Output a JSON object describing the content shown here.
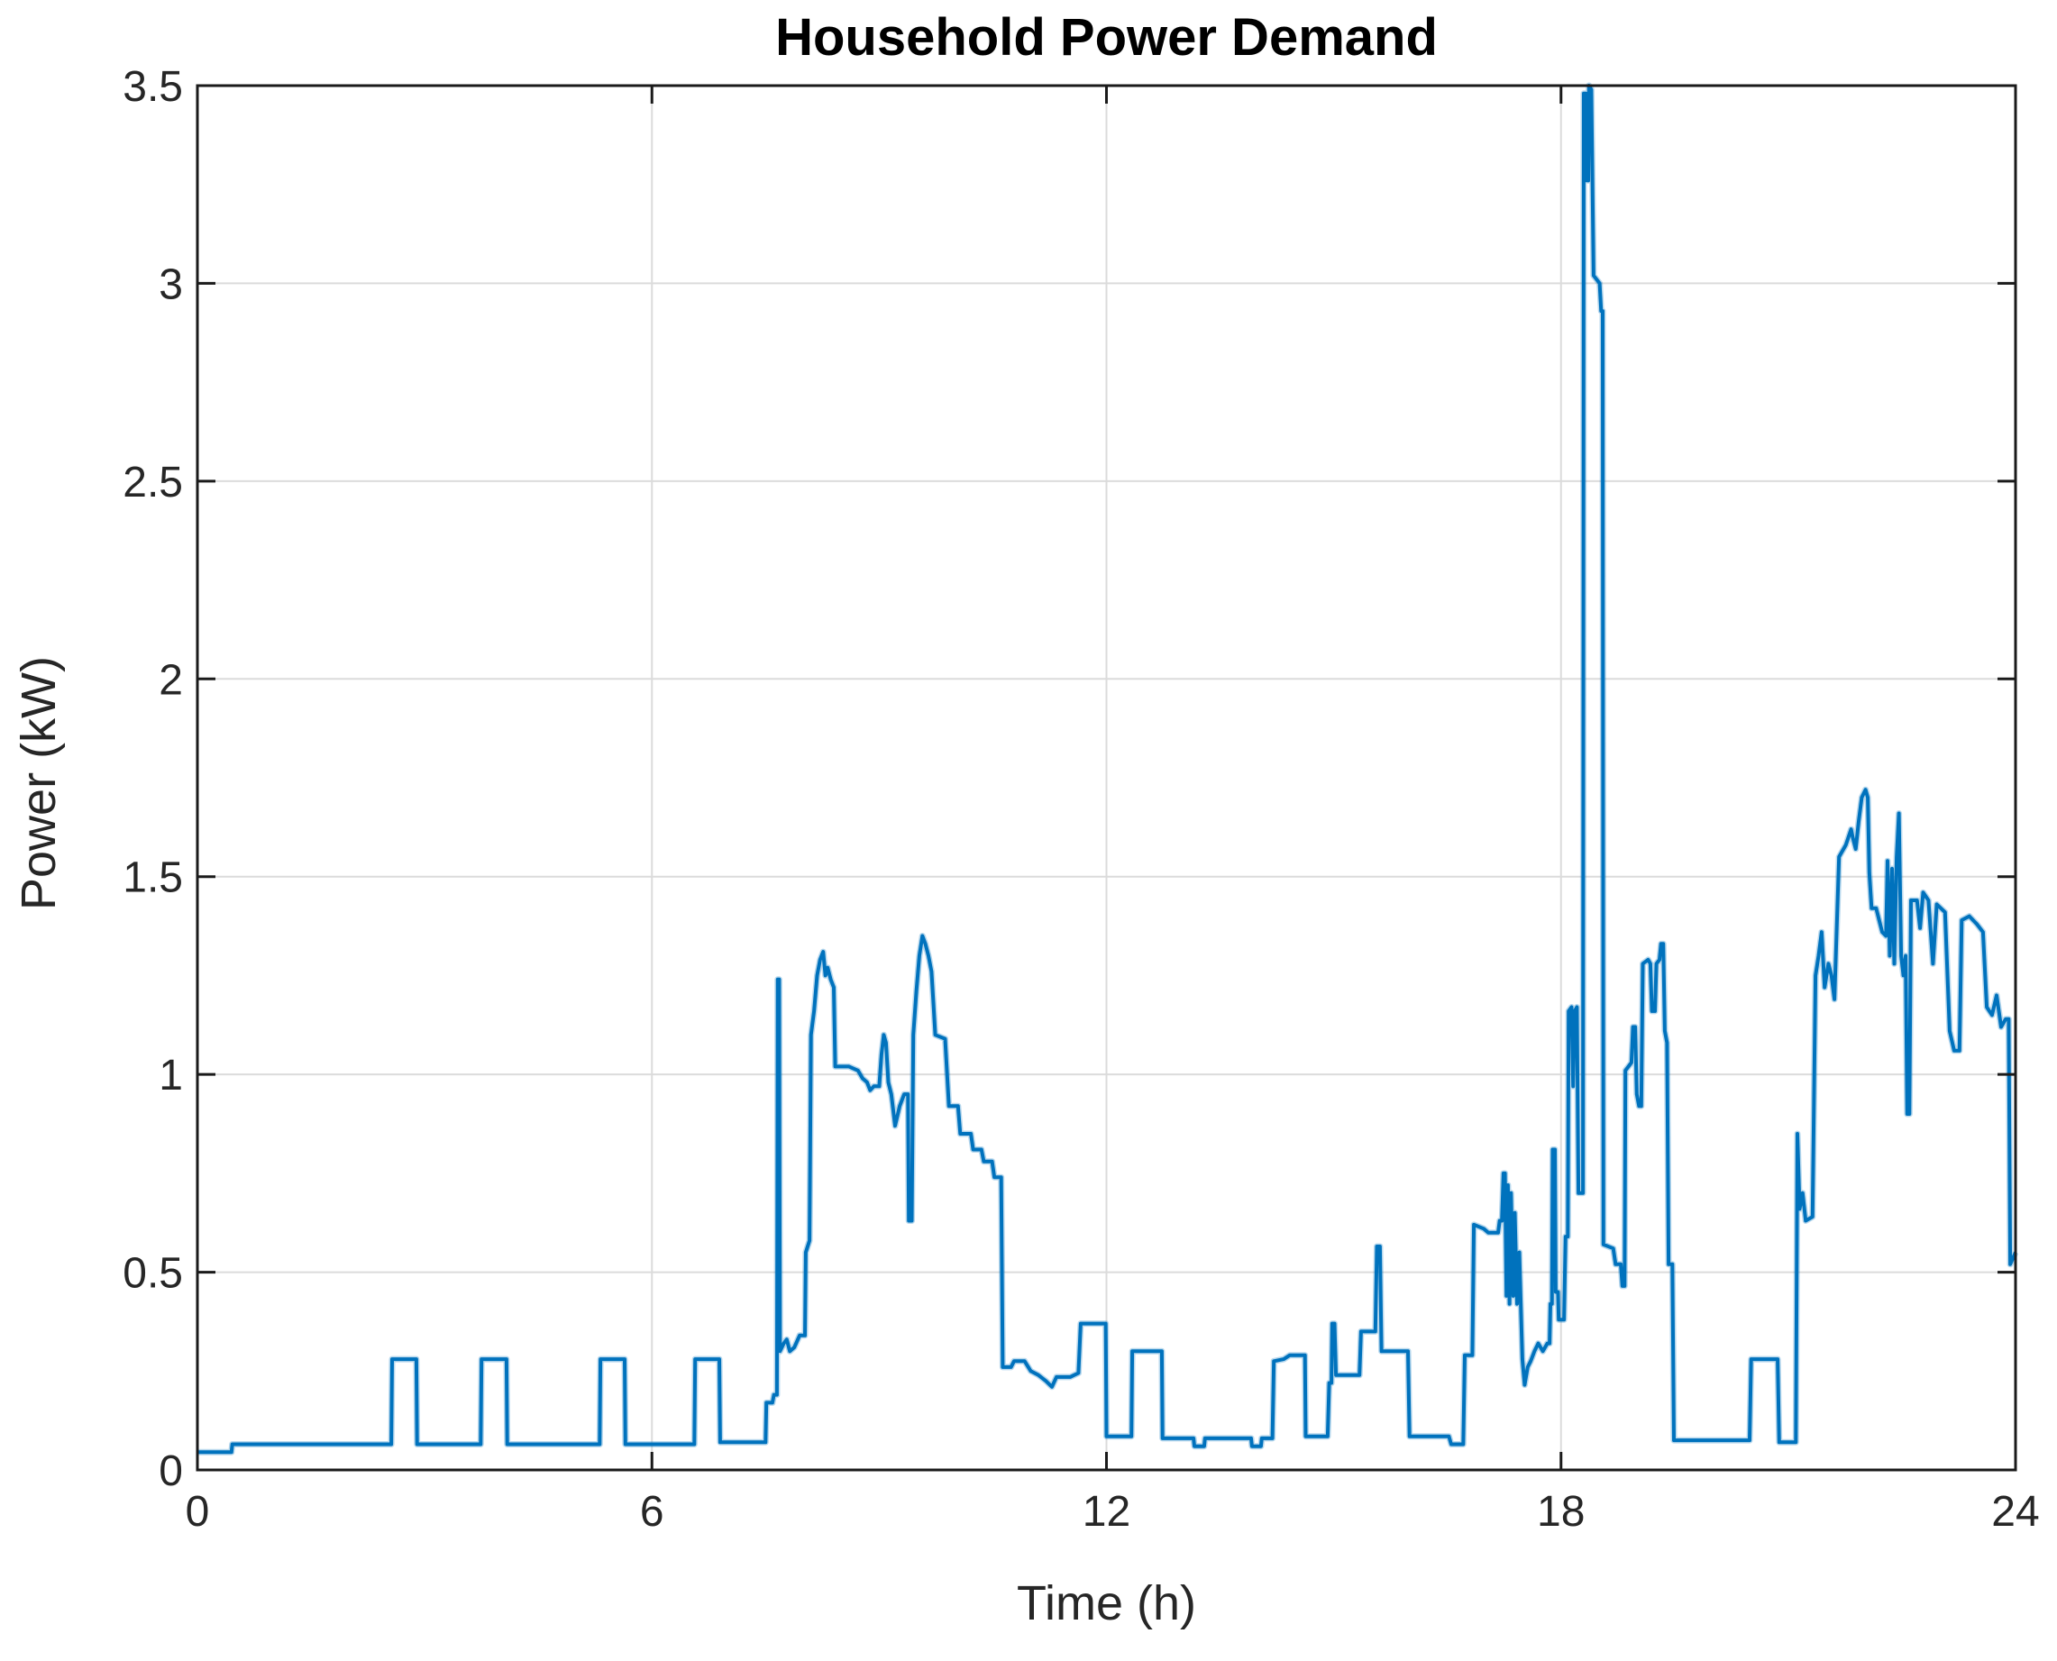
{
  "chart_data": {
    "type": "line",
    "title": "Household Power Demand",
    "xlabel": "Time (h)",
    "ylabel": "Power (kW)",
    "xlim": [
      0,
      24
    ],
    "ylim": [
      0,
      3.5
    ],
    "xticks": {
      "values": [
        0,
        6,
        12,
        18,
        24
      ],
      "labels": [
        "0",
        "6",
        "12",
        "18",
        "24"
      ]
    },
    "yticks": {
      "values": [
        0,
        0.5,
        1,
        1.5,
        2,
        2.5,
        3,
        3.5
      ],
      "labels": [
        "0",
        "0.5",
        "1",
        "1.5",
        "2",
        "2.5",
        "3",
        "3.5"
      ]
    },
    "grid": true,
    "legend_position": "none",
    "colors": {
      "line": "#0072BD",
      "line_halo": "rgba(0,114,189,0.28)",
      "grid": "#DBDBDB",
      "axis_box": "#1A1A1A",
      "tick_text": "#262626",
      "title_text": "#000000",
      "background": "#FFFFFF"
    },
    "series": [
      {
        "name": "Household power demand",
        "points": [
          [
            0,
            0.045
          ],
          [
            0.45,
            0.045
          ],
          [
            0.46,
            0.065
          ],
          [
            2.56,
            0.065
          ],
          [
            2.57,
            0.28
          ],
          [
            2.89,
            0.28
          ],
          [
            2.9,
            0.065
          ],
          [
            3.74,
            0.065
          ],
          [
            3.75,
            0.28
          ],
          [
            4.08,
            0.28
          ],
          [
            4.09,
            0.065
          ],
          [
            5.31,
            0.065
          ],
          [
            5.32,
            0.28
          ],
          [
            5.64,
            0.28
          ],
          [
            5.65,
            0.065
          ],
          [
            6.56,
            0.065
          ],
          [
            6.57,
            0.28
          ],
          [
            6.89,
            0.28
          ],
          [
            6.9,
            0.07
          ],
          [
            7.5,
            0.07
          ],
          [
            7.51,
            0.17
          ],
          [
            7.59,
            0.17
          ],
          [
            7.61,
            0.19
          ],
          [
            7.65,
            0.19
          ],
          [
            7.66,
            1.24
          ],
          [
            7.68,
            1.24
          ],
          [
            7.69,
            0.3
          ],
          [
            7.74,
            0.32
          ],
          [
            7.78,
            0.33
          ],
          [
            7.82,
            0.3
          ],
          [
            7.88,
            0.31
          ],
          [
            7.95,
            0.34
          ],
          [
            8.02,
            0.34
          ],
          [
            8.03,
            0.55
          ],
          [
            8.08,
            0.58
          ],
          [
            8.1,
            1.1
          ],
          [
            8.14,
            1.16
          ],
          [
            8.18,
            1.25
          ],
          [
            8.22,
            1.29
          ],
          [
            8.26,
            1.31
          ],
          [
            8.29,
            1.25
          ],
          [
            8.32,
            1.27
          ],
          [
            8.36,
            1.24
          ],
          [
            8.4,
            1.22
          ],
          [
            8.42,
            1.02
          ],
          [
            8.6,
            1.02
          ],
          [
            8.72,
            1.01
          ],
          [
            8.78,
            0.99
          ],
          [
            8.84,
            0.98
          ],
          [
            8.88,
            0.96
          ],
          [
            8.93,
            0.97
          ],
          [
            9.0,
            0.97
          ],
          [
            9.03,
            1.05
          ],
          [
            9.06,
            1.1
          ],
          [
            9.09,
            1.08
          ],
          [
            9.12,
            0.98
          ],
          [
            9.16,
            0.95
          ],
          [
            9.21,
            0.87
          ],
          [
            9.27,
            0.92
          ],
          [
            9.33,
            0.95
          ],
          [
            9.38,
            0.95
          ],
          [
            9.39,
            0.63
          ],
          [
            9.43,
            0.63
          ],
          [
            9.45,
            1.1
          ],
          [
            9.49,
            1.21
          ],
          [
            9.53,
            1.3
          ],
          [
            9.57,
            1.35
          ],
          [
            9.61,
            1.33
          ],
          [
            9.65,
            1.3
          ],
          [
            9.69,
            1.26
          ],
          [
            9.74,
            1.1
          ],
          [
            9.87,
            1.09
          ],
          [
            9.92,
            0.92
          ],
          [
            10.04,
            0.92
          ],
          [
            10.07,
            0.85
          ],
          [
            10.21,
            0.85
          ],
          [
            10.24,
            0.81
          ],
          [
            10.35,
            0.81
          ],
          [
            10.38,
            0.78
          ],
          [
            10.49,
            0.78
          ],
          [
            10.52,
            0.74
          ],
          [
            10.61,
            0.74
          ],
          [
            10.63,
            0.26
          ],
          [
            10.74,
            0.26
          ],
          [
            10.78,
            0.275
          ],
          [
            10.92,
            0.275
          ],
          [
            11.0,
            0.25
          ],
          [
            11.1,
            0.24
          ],
          [
            11.2,
            0.225
          ],
          [
            11.28,
            0.21
          ],
          [
            11.34,
            0.235
          ],
          [
            11.52,
            0.235
          ],
          [
            11.63,
            0.245
          ],
          [
            11.66,
            0.37
          ],
          [
            11.99,
            0.37
          ],
          [
            12.0,
            0.085
          ],
          [
            12.33,
            0.085
          ],
          [
            12.34,
            0.3
          ],
          [
            12.73,
            0.3
          ],
          [
            12.74,
            0.08
          ],
          [
            13.15,
            0.08
          ],
          [
            13.16,
            0.06
          ],
          [
            13.29,
            0.06
          ],
          [
            13.3,
            0.08
          ],
          [
            13.91,
            0.08
          ],
          [
            13.92,
            0.06
          ],
          [
            14.04,
            0.06
          ],
          [
            14.05,
            0.08
          ],
          [
            14.19,
            0.08
          ],
          [
            14.21,
            0.275
          ],
          [
            14.34,
            0.28
          ],
          [
            14.42,
            0.29
          ],
          [
            14.62,
            0.29
          ],
          [
            14.63,
            0.085
          ],
          [
            14.92,
            0.085
          ],
          [
            14.94,
            0.22
          ],
          [
            14.97,
            0.22
          ],
          [
            14.98,
            0.37
          ],
          [
            15.01,
            0.37
          ],
          [
            15.03,
            0.24
          ],
          [
            15.34,
            0.24
          ],
          [
            15.36,
            0.35
          ],
          [
            15.55,
            0.35
          ],
          [
            15.57,
            0.565
          ],
          [
            15.61,
            0.565
          ],
          [
            15.63,
            0.3
          ],
          [
            15.98,
            0.3
          ],
          [
            16.0,
            0.085
          ],
          [
            16.52,
            0.085
          ],
          [
            16.55,
            0.065
          ],
          [
            16.71,
            0.065
          ],
          [
            16.73,
            0.29
          ],
          [
            16.83,
            0.29
          ],
          [
            16.85,
            0.62
          ],
          [
            16.98,
            0.61
          ],
          [
            17.04,
            0.6
          ],
          [
            17.17,
            0.6
          ],
          [
            17.19,
            0.63
          ],
          [
            17.22,
            0.63
          ],
          [
            17.24,
            0.75
          ],
          [
            17.26,
            0.75
          ],
          [
            17.28,
            0.44
          ],
          [
            17.3,
            0.72
          ],
          [
            17.32,
            0.42
          ],
          [
            17.34,
            0.7
          ],
          [
            17.37,
            0.44
          ],
          [
            17.39,
            0.65
          ],
          [
            17.42,
            0.42
          ],
          [
            17.45,
            0.55
          ],
          [
            17.49,
            0.28
          ],
          [
            17.52,
            0.215
          ],
          [
            17.56,
            0.26
          ],
          [
            17.6,
            0.275
          ],
          [
            17.65,
            0.3
          ],
          [
            17.7,
            0.32
          ],
          [
            17.76,
            0.3
          ],
          [
            17.82,
            0.32
          ],
          [
            17.85,
            0.32
          ],
          [
            17.86,
            0.42
          ],
          [
            17.88,
            0.42
          ],
          [
            17.89,
            0.81
          ],
          [
            17.92,
            0.81
          ],
          [
            17.93,
            0.45
          ],
          [
            17.96,
            0.45
          ],
          [
            17.97,
            0.38
          ],
          [
            18.04,
            0.38
          ],
          [
            18.06,
            0.59
          ],
          [
            18.09,
            0.59
          ],
          [
            18.1,
            1.16
          ],
          [
            18.14,
            1.17
          ],
          [
            18.16,
            0.97
          ],
          [
            18.18,
            1.16
          ],
          [
            18.21,
            1.17
          ],
          [
            18.23,
            0.7
          ],
          [
            18.29,
            0.7
          ],
          [
            18.3,
            3.48
          ],
          [
            18.33,
            3.48
          ],
          [
            18.34,
            3.26
          ],
          [
            18.36,
            3.26
          ],
          [
            18.37,
            3.5
          ],
          [
            18.4,
            3.49
          ],
          [
            18.43,
            3.02
          ],
          [
            18.51,
            3.0
          ],
          [
            18.53,
            2.93
          ],
          [
            18.55,
            2.93
          ],
          [
            18.56,
            0.57
          ],
          [
            18.69,
            0.56
          ],
          [
            18.72,
            0.52
          ],
          [
            18.79,
            0.52
          ],
          [
            18.81,
            0.465
          ],
          [
            18.84,
            0.465
          ],
          [
            18.85,
            1.01
          ],
          [
            18.93,
            1.03
          ],
          [
            18.95,
            1.12
          ],
          [
            18.98,
            1.12
          ],
          [
            19.0,
            0.95
          ],
          [
            19.03,
            0.92
          ],
          [
            19.06,
            0.92
          ],
          [
            19.08,
            1.28
          ],
          [
            19.15,
            1.29
          ],
          [
            19.18,
            1.28
          ],
          [
            19.2,
            1.16
          ],
          [
            19.24,
            1.16
          ],
          [
            19.26,
            1.28
          ],
          [
            19.3,
            1.29
          ],
          [
            19.32,
            1.33
          ],
          [
            19.35,
            1.33
          ],
          [
            19.37,
            1.11
          ],
          [
            19.4,
            1.08
          ],
          [
            19.42,
            0.52
          ],
          [
            19.47,
            0.52
          ],
          [
            19.49,
            0.075
          ],
          [
            20.49,
            0.075
          ],
          [
            20.51,
            0.28
          ],
          [
            20.86,
            0.28
          ],
          [
            20.88,
            0.07
          ],
          [
            21.1,
            0.07
          ],
          [
            21.12,
            0.85
          ],
          [
            21.15,
            0.66
          ],
          [
            21.19,
            0.7
          ],
          [
            21.23,
            0.63
          ],
          [
            21.32,
            0.64
          ],
          [
            21.36,
            1.25
          ],
          [
            21.4,
            1.3
          ],
          [
            21.44,
            1.36
          ],
          [
            21.48,
            1.22
          ],
          [
            21.53,
            1.28
          ],
          [
            21.57,
            1.25
          ],
          [
            21.61,
            1.19
          ],
          [
            21.67,
            1.55
          ],
          [
            21.76,
            1.58
          ],
          [
            21.83,
            1.62
          ],
          [
            21.85,
            1.6
          ],
          [
            21.89,
            1.57
          ],
          [
            21.93,
            1.64
          ],
          [
            21.97,
            1.7
          ],
          [
            22.02,
            1.72
          ],
          [
            22.05,
            1.7
          ],
          [
            22.07,
            1.51
          ],
          [
            22.1,
            1.42
          ],
          [
            22.16,
            1.42
          ],
          [
            22.2,
            1.39
          ],
          [
            22.24,
            1.36
          ],
          [
            22.29,
            1.35
          ],
          [
            22.31,
            1.54
          ],
          [
            22.34,
            1.3
          ],
          [
            22.37,
            1.52
          ],
          [
            22.4,
            1.28
          ],
          [
            22.43,
            1.55
          ],
          [
            22.46,
            1.66
          ],
          [
            22.49,
            1.3
          ],
          [
            22.52,
            1.25
          ],
          [
            22.55,
            1.3
          ],
          [
            22.57,
            0.9
          ],
          [
            22.6,
            0.9
          ],
          [
            22.62,
            1.44
          ],
          [
            22.7,
            1.44
          ],
          [
            22.74,
            1.37
          ],
          [
            22.78,
            1.46
          ],
          [
            22.85,
            1.44
          ],
          [
            22.91,
            1.28
          ],
          [
            22.96,
            1.43
          ],
          [
            23.07,
            1.41
          ],
          [
            23.13,
            1.11
          ],
          [
            23.19,
            1.06
          ],
          [
            23.26,
            1.06
          ],
          [
            23.29,
            1.39
          ],
          [
            23.39,
            1.4
          ],
          [
            23.49,
            1.38
          ],
          [
            23.57,
            1.36
          ],
          [
            23.62,
            1.17
          ],
          [
            23.69,
            1.15
          ],
          [
            23.75,
            1.2
          ],
          [
            23.81,
            1.12
          ],
          [
            23.87,
            1.14
          ],
          [
            23.91,
            1.14
          ],
          [
            23.93,
            0.52
          ],
          [
            24,
            0.55
          ]
        ]
      }
    ]
  }
}
